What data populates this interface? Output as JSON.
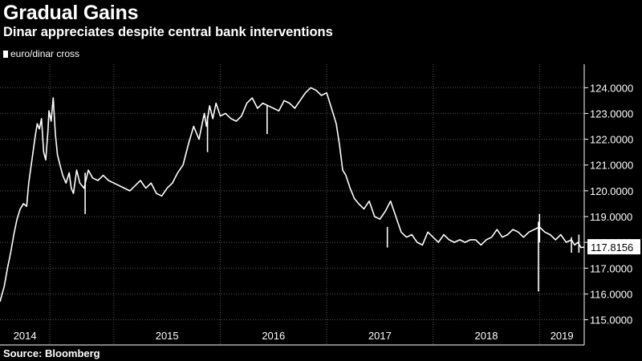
{
  "header": {
    "title": "Gradual Gains",
    "subtitle": "Dinar appreciates despite central bank interventions"
  },
  "legend": {
    "label": "euro/dinar cross"
  },
  "footer": {
    "source": "Source: Bloomberg"
  },
  "colors": {
    "background": "#000000",
    "line": "#ffffff",
    "grid": "#555555",
    "text": "#ffffff"
  },
  "chart_data": {
    "type": "line",
    "title": "Gradual Gains",
    "subtitle": "Dinar appreciates despite central bank interventions",
    "xlabel": "",
    "ylabel": "",
    "ylim": [
      114.8,
      124.6
    ],
    "grid": true,
    "legend_position": "top-left",
    "y_axis_side": "right",
    "yticks": [
      115,
      116,
      117,
      118,
      119,
      120,
      121,
      122,
      123,
      124
    ],
    "ytick_labels": [
      "115.0000",
      "116.0000",
      "117.0000",
      "118.0000",
      "119.0000",
      "120.0000",
      "121.0000",
      "122.0000",
      "123.0000",
      "124.0000"
    ],
    "xtick_labels": [
      "2014",
      "2015",
      "2016",
      "2017",
      "2018",
      "2019"
    ],
    "year_boundaries": [
      2014.4,
      2015,
      2016,
      2017,
      2018,
      2019
    ],
    "x_range": [
      2013.93,
      2019.42
    ],
    "last_value_label": "117.8156",
    "last_value": 117.8156,
    "series": [
      {
        "name": "euro/dinar cross",
        "x": [
          2013.93,
          2013.97,
          2014.0,
          2014.03,
          2014.06,
          2014.09,
          2014.12,
          2014.15,
          2014.18,
          2014.2,
          2014.23,
          2014.26,
          2014.28,
          2014.3,
          2014.32,
          2014.34,
          2014.36,
          2014.38,
          2014.39,
          2014.41,
          2014.43,
          2014.45,
          2014.47,
          2014.5,
          2014.52,
          2014.55,
          2014.58,
          2014.6,
          2014.62,
          2014.65,
          2014.68,
          2014.72,
          2014.76,
          2014.8,
          2014.85,
          2014.9,
          2014.95,
          2015.0,
          2015.05,
          2015.1,
          2015.15,
          2015.2,
          2015.25,
          2015.3,
          2015.35,
          2015.4,
          2015.45,
          2015.5,
          2015.55,
          2015.6,
          2015.65,
          2015.7,
          2015.75,
          2015.8,
          2015.82,
          2015.85,
          2015.87,
          2015.9,
          2015.93,
          2015.96,
          2016.0,
          2016.05,
          2016.1,
          2016.15,
          2016.2,
          2016.25,
          2016.3,
          2016.35,
          2016.4,
          2016.45,
          2016.5,
          2016.55,
          2016.6,
          2016.65,
          2016.7,
          2016.75,
          2016.8,
          2016.85,
          2016.9,
          2016.95,
          2017.0,
          2017.03,
          2017.06,
          2017.09,
          2017.12,
          2017.15,
          2017.18,
          2017.22,
          2017.26,
          2017.3,
          2017.35,
          2017.4,
          2017.45,
          2017.5,
          2017.55,
          2017.6,
          2017.65,
          2017.7,
          2017.75,
          2017.8,
          2017.85,
          2017.9,
          2017.95,
          2018.0,
          2018.05,
          2018.1,
          2018.15,
          2018.2,
          2018.25,
          2018.3,
          2018.35,
          2018.4,
          2018.45,
          2018.5,
          2018.55,
          2018.6,
          2018.65,
          2018.7,
          2018.75,
          2018.8,
          2018.85,
          2018.9,
          2018.95,
          2019.0,
          2019.05,
          2019.1,
          2019.15,
          2019.2,
          2019.25,
          2019.3,
          2019.33,
          2019.36,
          2019.39,
          2019.42
        ],
        "values": [
          115.7,
          116.3,
          117.0,
          117.6,
          118.3,
          118.9,
          119.3,
          119.5,
          119.4,
          120.3,
          121.2,
          122.1,
          122.6,
          122.4,
          122.8,
          121.5,
          121.2,
          122.3,
          123.1,
          122.7,
          123.6,
          122.2,
          121.4,
          120.9,
          120.6,
          120.3,
          120.7,
          120.1,
          119.9,
          120.8,
          120.3,
          120.1,
          120.8,
          120.5,
          120.4,
          120.6,
          120.4,
          120.3,
          120.2,
          120.1,
          120.0,
          120.2,
          120.4,
          120.1,
          120.3,
          119.9,
          119.8,
          120.1,
          120.3,
          120.7,
          121.0,
          121.8,
          122.5,
          122.0,
          122.4,
          123.0,
          122.5,
          123.3,
          122.8,
          123.4,
          122.9,
          123.0,
          122.8,
          122.7,
          122.9,
          123.4,
          123.6,
          123.2,
          123.4,
          123.3,
          123.2,
          123.1,
          123.5,
          123.4,
          123.2,
          123.5,
          123.8,
          124.0,
          123.9,
          123.7,
          123.8,
          123.4,
          123.0,
          122.6,
          121.8,
          120.8,
          120.6,
          120.1,
          119.7,
          119.5,
          119.3,
          119.6,
          119.0,
          118.9,
          119.2,
          119.6,
          119.0,
          118.4,
          118.2,
          118.3,
          118.0,
          117.9,
          118.4,
          118.2,
          118.0,
          118.3,
          118.1,
          118.0,
          118.1,
          118.0,
          118.1,
          118.1,
          117.9,
          118.1,
          118.2,
          118.5,
          118.2,
          118.3,
          118.5,
          118.4,
          118.2,
          118.4,
          118.5,
          118.6,
          118.4,
          118.3,
          118.1,
          118.3,
          118.0,
          118.1,
          117.9,
          118.0,
          117.8,
          117.8156
        ]
      }
    ],
    "spikes": [
      {
        "x": 2014.73,
        "low": 119.1,
        "high": 120.7
      },
      {
        "x": 2015.88,
        "low": 121.5,
        "high": 122.9
      },
      {
        "x": 2016.44,
        "low": 122.2,
        "high": 123.3
      },
      {
        "x": 2017.57,
        "low": 117.8,
        "high": 118.6
      },
      {
        "x": 2018.99,
        "low": 116.1,
        "high": 118.8
      },
      {
        "x": 2019.0,
        "low": 118.0,
        "high": 119.1
      },
      {
        "x": 2019.3,
        "low": 117.6,
        "high": 118.2
      },
      {
        "x": 2019.37,
        "low": 117.6,
        "high": 118.3
      }
    ]
  }
}
